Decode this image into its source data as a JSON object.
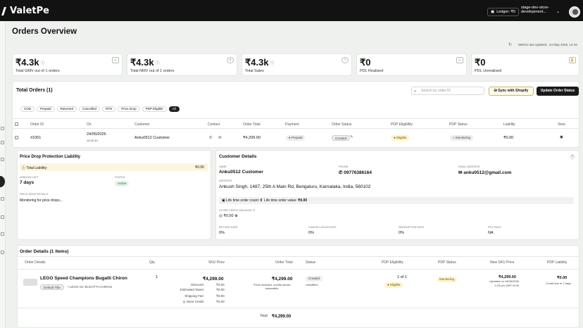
{
  "topbar": {
    "brand": "ValetPe",
    "ledger": "Ledger: ₹0",
    "store_name": "stage-dev-store-development..."
  },
  "page": {
    "title": "Orders Overview",
    "metrics_updated": "Metrics last updated : 24 May 2026, 14:15"
  },
  "metrics": [
    {
      "value": "₹4.3k",
      "label": "Total GMV out of 1 orders",
      "icon": "receipt-icon",
      "has_info": true
    },
    {
      "value": "₹4.3k",
      "label": "Total NMV out of 1 orders",
      "icon": "coin-icon",
      "has_info": true
    },
    {
      "value": "₹4.3k",
      "label": "Total Sales",
      "icon": "help-icon",
      "has_info": true
    },
    {
      "value": "₹0",
      "label": "PDL Realised",
      "icon": "bag-icon",
      "has_info": false
    },
    {
      "value": "₹0",
      "label": "PDL Unrealised",
      "icon": "hand-icon",
      "has_info": false
    }
  ],
  "orders": {
    "heading": "Total Orders (1)",
    "search_placeholder": "Search by order ID",
    "sync_label": "Sync with Shopify",
    "update_label": "Update Order Status",
    "filters": [
      "COD",
      "Prepaid",
      "Returned",
      "Cancelled",
      "RTO",
      "Price Drop",
      "PDP Eligible",
      "All"
    ],
    "selected_filter": "All",
    "columns": [
      "Order ID",
      "On",
      "Customer",
      "Contact",
      "Order Total",
      "Payment",
      "Order Status",
      "PDP Eligibility",
      "PDP Status",
      "Liability",
      "View"
    ],
    "row": {
      "order_id": "#1001",
      "date": "24/05/2026",
      "time": "14:22:10",
      "customer": "Anku0512 Customer",
      "order_total": "₹4,299.00",
      "payment": "Prepaid",
      "order_status": "Created",
      "pdp_eligibility": "Eligible",
      "pdp_status": "Monitoring",
      "liability": "₹0.00"
    }
  },
  "pdp_panel": {
    "title": "Price Drop Protection Liability",
    "total_label": "Total Liability:",
    "total_value": "₹0.00",
    "window_label": "WINDOW LEFT",
    "window_value": "7 days",
    "status_label": "STATUS",
    "status_value": "Active",
    "details_label": "PRICE DROP DETAILS",
    "details_value": "Monitoring for price drops..."
  },
  "customer": {
    "title": "Customer Details",
    "name_label": "NAME",
    "name": "Anku0512 Customer",
    "phone_label": "PHONE",
    "phone": "09776386164",
    "email_label": "EMAIL ADDRESS",
    "email": "anku0512@gmail.com",
    "address_label": "ADDRESS",
    "address": "Ankush Singh, 1487, 25th A Main Rd, Bengaluru, Karnataka, India, 560102",
    "lifetime_count_label": "Life time order count:",
    "lifetime_count": "0",
    "lifetime_value_label": "Life time order value:",
    "lifetime_value": "₹0.00",
    "store_credit_label": "STORE CREDIT BALANCE",
    "store_credit": "₹0.00",
    "rates": [
      {
        "label": "RETURN RATE",
        "value": "0%"
      },
      {
        "label": "CANCELLATION RATE",
        "value": "0%"
      },
      {
        "label": "REDEMPTION RATE",
        "value": "0%"
      },
      {
        "label": "RTO RATE",
        "value": "NA"
      }
    ]
  },
  "order_details": {
    "heading": "Order Details (1 items)",
    "columns": [
      "Order Details",
      "Qty.",
      "SKU Price",
      "Order Total",
      "Status",
      "PDP Eligibility",
      "PDP Status",
      "New SKU Price",
      "PDP Liability"
    ],
    "item": {
      "name": "LEGO Speed Champions Bugatti Chiron",
      "variant": "Default Title",
      "sku": "LEGO-SC-BUGATTI-CHIRON",
      "qty": "1",
      "sku_price": "₹4,299.00",
      "discount_label": "Discount:",
      "discount": "₹0.00",
      "taxes_label": "Estimated Taxes:",
      "taxes": "₹0.00",
      "shipping_label": "Shipping Fee:",
      "shipping": "₹0.00",
      "credit_label": "Store Credit:",
      "credit": "₹0.00",
      "order_total": "₹4,299.00",
      "order_total_note": "*Fees included, credits shown separately",
      "status": "Created",
      "status_note": "Unfulfilled",
      "eligibility_count": "1 of 1",
      "eligibility": "Eligible",
      "pdp_status": "Monitoring",
      "new_price": "₹4,299.00",
      "new_price_note1": "Updated on 24/05/2026",
      "new_price_note2": "2:23 pm GMT+5:30",
      "liability": "₹0.00",
      "liability_note": "Credit due in 7 days"
    },
    "total_label": "Total:",
    "total_value": "₹4,299.00"
  }
}
